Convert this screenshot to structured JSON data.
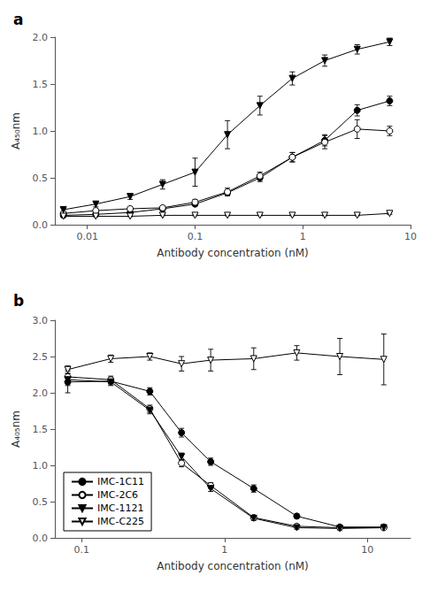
{
  "chart_data": [
    {
      "type": "line",
      "title": "a",
      "xlabel": "Antibody concentration (nM)",
      "ylabel": "A₄₅₀nm",
      "log": "x",
      "grid": false,
      "xlim": [
        0.005,
        10.0
      ],
      "xticks": [
        0.01,
        0.1,
        1,
        10
      ],
      "ylim": [
        0.0,
        2.0
      ],
      "yticks": [
        {
          "value": 0.0,
          "label": "0.0"
        },
        0.5,
        {
          "value": 1.0,
          "label": "1.0"
        },
        1.5,
        {
          "value": 2.0,
          "label": "2.0"
        }
      ],
      "x": [
        0.006,
        0.012,
        0.025,
        0.05,
        0.1,
        0.2,
        0.4,
        0.8,
        1.6,
        3.2,
        6.4
      ],
      "series": [
        {
          "name": "IMC-1C11",
          "color": "#000000",
          "marker": "circle",
          "values": [
            0.1,
            0.11,
            0.13,
            0.17,
            0.22,
            0.34,
            0.5,
            0.72,
            0.9,
            1.22,
            1.32
          ],
          "yerr": [
            0.01,
            0.01,
            0.01,
            0.02,
            0.02,
            0.03,
            0.04,
            0.05,
            0.06,
            0.06,
            0.05
          ]
        },
        {
          "name": "IMC-2C6",
          "color": "#000000",
          "marker": "circle-open",
          "values": [
            0.12,
            0.15,
            0.17,
            0.18,
            0.24,
            0.35,
            0.52,
            0.72,
            0.88,
            1.02,
            1.0
          ],
          "yerr": [
            0.01,
            0.02,
            0.02,
            0.02,
            0.03,
            0.04,
            0.04,
            0.05,
            0.07,
            0.1,
            0.05
          ]
        },
        {
          "name": "IMC-1121",
          "color": "#000000",
          "marker": "triangle-down",
          "values": [
            0.16,
            0.22,
            0.3,
            0.43,
            0.56,
            0.96,
            1.27,
            1.56,
            1.75,
            1.87,
            1.95
          ],
          "yerr": [
            0.02,
            0.03,
            0.03,
            0.05,
            0.15,
            0.15,
            0.1,
            0.07,
            0.06,
            0.05,
            0.04
          ]
        },
        {
          "name": "IMC-C225",
          "color": "#000000",
          "marker": "triangle-down-open",
          "values": [
            0.09,
            0.09,
            0.09,
            0.1,
            0.1,
            0.1,
            0.1,
            0.1,
            0.1,
            0.1,
            0.12
          ],
          "yerr": [
            0.01,
            0.005,
            0.005,
            0.005,
            0.005,
            0.005,
            0.005,
            0.005,
            0.005,
            0.005,
            0.01
          ]
        }
      ]
    },
    {
      "type": "line",
      "title": "b",
      "xlabel": "Antibody concentration (nM)",
      "ylabel": "A₄₀₅nm",
      "log": "x",
      "grid": false,
      "legend": "lower left",
      "xlim": [
        0.065,
        20.0
      ],
      "xticks": [
        0.1,
        1,
        10
      ],
      "ylim": [
        0.0,
        3.0
      ],
      "yticks": [
        {
          "value": 0.0,
          "label": "0.0"
        },
        0.5,
        {
          "value": 1.0,
          "label": "1.0"
        },
        1.5,
        {
          "value": 2.0,
          "label": "2.0"
        },
        2.5,
        {
          "value": 3.0,
          "label": "3.0"
        }
      ],
      "x": [
        0.08,
        0.16,
        0.3,
        0.5,
        0.8,
        1.6,
        3.2,
        6.4,
        13.0
      ],
      "series": [
        {
          "name": "IMC-1C11",
          "color": "#000000",
          "marker": "circle",
          "values": [
            2.15,
            2.16,
            2.02,
            1.45,
            1.05,
            0.68,
            0.3,
            0.15,
            0.15
          ],
          "yerr": [
            0.15,
            0.05,
            0.05,
            0.06,
            0.05,
            0.05,
            0.03,
            0.02,
            0.02
          ]
        },
        {
          "name": "IMC-2C6",
          "color": "#000000",
          "marker": "circle-open",
          "values": [
            2.22,
            2.18,
            1.78,
            1.03,
            0.72,
            0.28,
            0.16,
            0.14,
            0.14
          ],
          "yerr": [
            0.1,
            0.05,
            0.05,
            0.05,
            0.04,
            0.03,
            0.02,
            0.02,
            0.02
          ]
        },
        {
          "name": "IMC-1121",
          "color": "#000000",
          "marker": "triangle-down",
          "values": [
            2.18,
            2.15,
            1.76,
            1.12,
            0.68,
            0.27,
            0.14,
            0.13,
            0.14
          ],
          "yerr": [
            0.08,
            0.05,
            0.05,
            0.05,
            0.04,
            0.03,
            0.02,
            0.02,
            0.02
          ]
        },
        {
          "name": "IMC-C225",
          "color": "#000000",
          "marker": "triangle-down-open",
          "values": [
            2.32,
            2.47,
            2.5,
            2.4,
            2.45,
            2.47,
            2.55,
            2.5,
            2.46
          ],
          "yerr": [
            0.05,
            0.05,
            0.05,
            0.1,
            0.15,
            0.15,
            0.1,
            0.25,
            0.35
          ]
        }
      ]
    }
  ]
}
